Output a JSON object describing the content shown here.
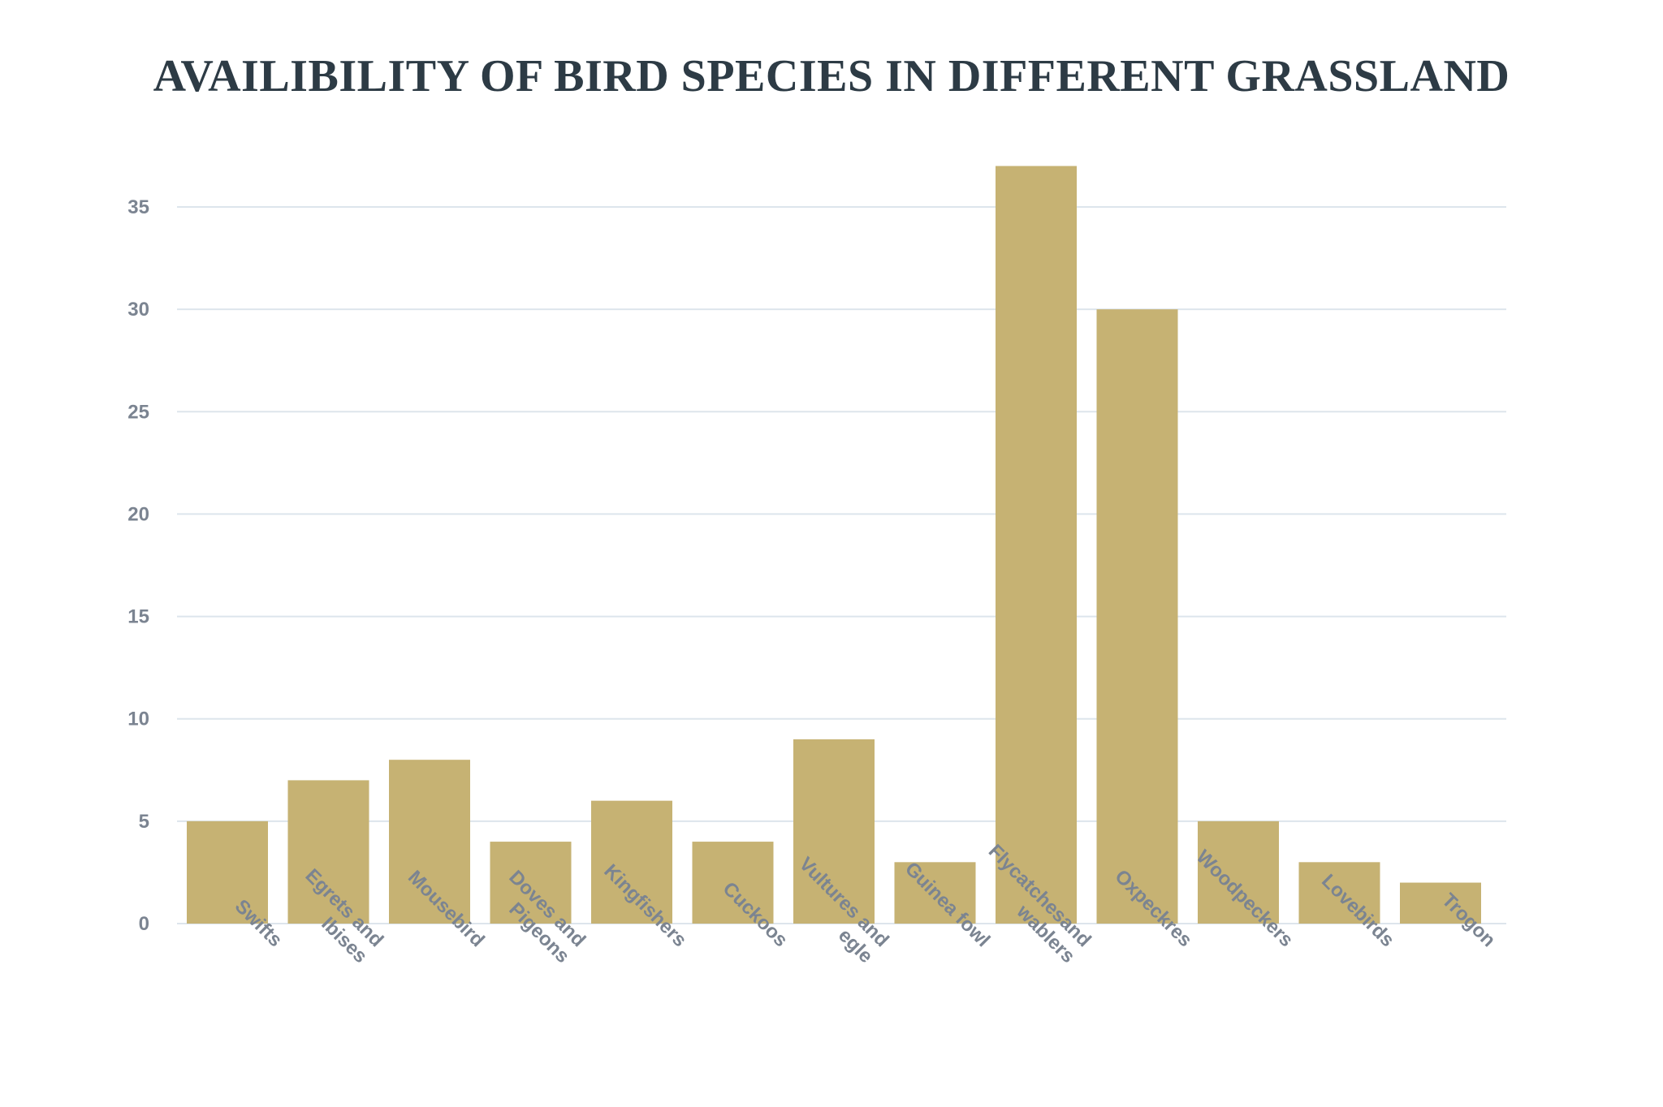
{
  "chart_data": {
    "type": "bar",
    "title": "AVAILIBILITY OF BIRD SPECIES IN DIFFERENT GRASSLAND",
    "xlabel": "",
    "ylabel": "",
    "ylim": [
      0,
      37
    ],
    "yticks": [
      0,
      5,
      10,
      15,
      20,
      25,
      30,
      35
    ],
    "grid": true,
    "bar_color": "#c6b273",
    "grid_color": "#dde5ec",
    "categories": [
      [
        "Swifts"
      ],
      [
        "Egrets and",
        "Ibises"
      ],
      [
        "Mousebird"
      ],
      [
        "Doves and",
        "Pigeons"
      ],
      [
        "Kingfishers"
      ],
      [
        "Cuckoos"
      ],
      [
        "Vultures and",
        "egle"
      ],
      [
        "Guinea fowl"
      ],
      [
        "Flycatchesand",
        "wablers"
      ],
      [
        "Oxpeckres"
      ],
      [
        "Woodpeckers"
      ],
      [
        "Lovebirds"
      ],
      [
        "Trogon"
      ]
    ],
    "values": [
      5,
      7,
      8,
      4,
      6,
      4,
      9,
      3,
      37,
      30,
      5,
      3,
      2
    ]
  }
}
